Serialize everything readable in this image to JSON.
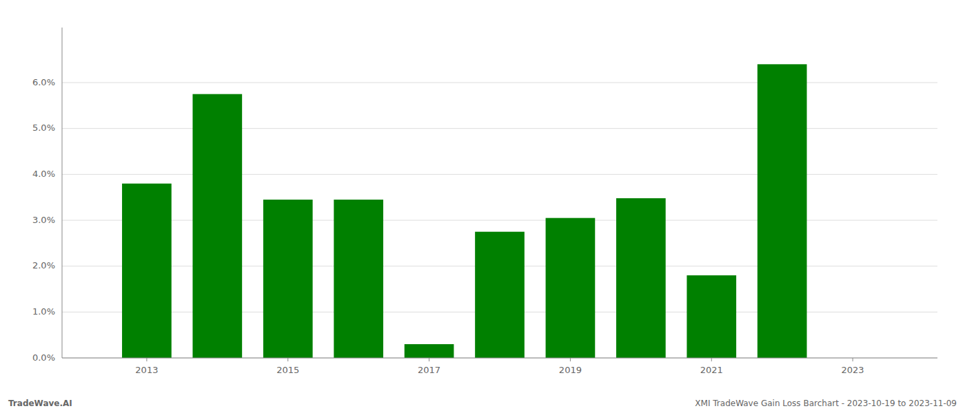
{
  "chart_data": {
    "type": "bar",
    "x": [
      2013,
      2014,
      2015,
      2016,
      2017,
      2018,
      2019,
      2020,
      2021,
      2022
    ],
    "values": [
      0.038,
      0.0575,
      0.0345,
      0.0345,
      0.003,
      0.0275,
      0.0305,
      0.0348,
      0.018,
      0.064
    ],
    "color": "#008000",
    "xlim": [
      2011.8,
      2024.2
    ],
    "xticks": [
      2013,
      2015,
      2017,
      2019,
      2021,
      2023
    ],
    "ylim": [
      0,
      0.072
    ],
    "yticks": [
      {
        "value": 0.0,
        "label": "0.0%"
      },
      {
        "value": 0.01,
        "label": "1.0%"
      },
      {
        "value": 0.02,
        "label": "2.0%"
      },
      {
        "value": 0.03,
        "label": "3.0%"
      },
      {
        "value": 0.04,
        "label": "4.0%"
      },
      {
        "value": 0.05,
        "label": "5.0%"
      },
      {
        "value": 0.06,
        "label": "6.0%"
      }
    ],
    "grid": true,
    "annotations": [
      "TradeWave.AI",
      "XMI TradeWave Gain Loss Barchart - 2023-10-19 to 2023-11-09"
    ]
  }
}
